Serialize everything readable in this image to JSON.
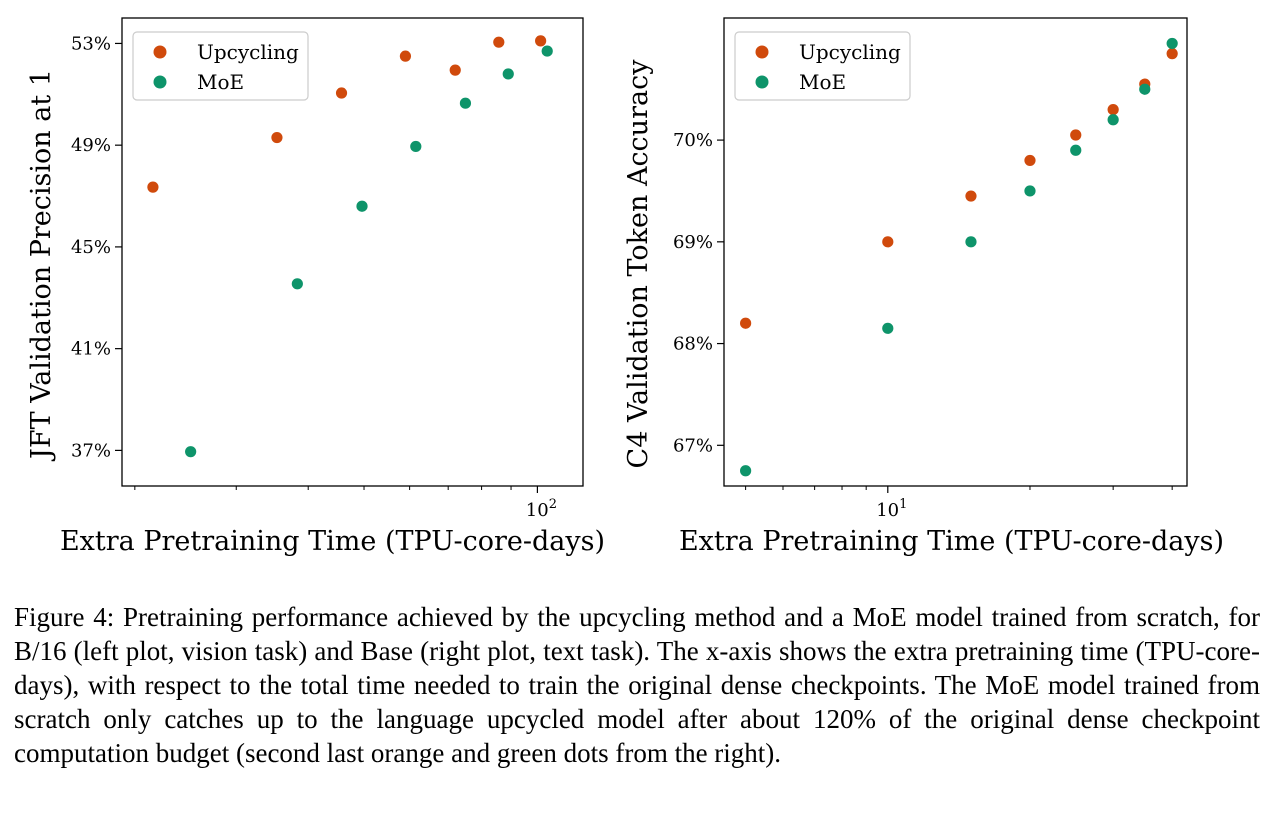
{
  "chart_data": [
    {
      "type": "scatter",
      "xlabel": "Extra Pretraining Time (TPU-core-days)",
      "ylabel": "JFT Validation Precision at 1",
      "xscale": "log",
      "xlim": [
        19,
        120
      ],
      "xticks": [
        {
          "value": 100,
          "label": "10",
          "exp": "2"
        }
      ],
      "ylim": [
        35.6,
        54.0
      ],
      "yticks": [
        {
          "value": 53,
          "label": "53%"
        },
        {
          "value": 49,
          "label": "49%"
        },
        {
          "value": 45,
          "label": "45%"
        },
        {
          "value": 41,
          "label": "41%"
        },
        {
          "value": 37,
          "label": "37%"
        }
      ],
      "grid": false,
      "legend_placement": "top-left",
      "series": [
        {
          "name": "Upcycling",
          "color": "#d04a0c",
          "x": [
            21.5,
            35.3,
            45.7,
            59.0,
            72.0,
            85.7,
            101.3
          ],
          "y": [
            47.35,
            49.3,
            51.05,
            52.5,
            51.95,
            53.05,
            53.1
          ]
        },
        {
          "name": "MoE",
          "color": "#0e946a",
          "x": [
            25.0,
            38.3,
            49.6,
            61.5,
            75.0,
            89.0,
            104.0
          ],
          "y": [
            36.95,
            43.55,
            46.6,
            48.95,
            50.65,
            51.8,
            52.7
          ]
        }
      ]
    },
    {
      "type": "scatter",
      "xlabel": "Extra Pretraining Time (TPU-core-days)",
      "ylabel": "C4 Validation Token Accuracy",
      "xscale": "log",
      "xlim": [
        4.5,
        43
      ],
      "xticks": [
        {
          "value": 10,
          "label": "10",
          "exp": "1"
        }
      ],
      "ylim": [
        66.6,
        71.2
      ],
      "yticks": [
        {
          "value": 70,
          "label": "70%"
        },
        {
          "value": 69,
          "label": "69%"
        },
        {
          "value": 68,
          "label": "68%"
        },
        {
          "value": 67,
          "label": "67%"
        }
      ],
      "grid": false,
      "legend_placement": "top-left",
      "series": [
        {
          "name": "Upcycling",
          "color": "#d04a0c",
          "x": [
            5.0,
            10.0,
            15.0,
            20.0,
            25.0,
            30.0,
            35.0,
            40.0
          ],
          "y": [
            68.2,
            69.0,
            69.45,
            69.8,
            70.05,
            70.3,
            70.55,
            70.85
          ]
        },
        {
          "name": "MoE",
          "color": "#0e946a",
          "x": [
            5.0,
            10.0,
            15.0,
            20.0,
            25.0,
            30.0,
            35.0,
            40.0
          ],
          "y": [
            66.75,
            68.15,
            69.0,
            69.5,
            69.9,
            70.2,
            70.5,
            70.95
          ]
        }
      ]
    }
  ],
  "caption": "Figure 4: Pretraining performance achieved by the upcycling method and a MoE model trained from scratch, for B/16 (left plot, vision task) and Base (right plot, text task). The x-axis shows the extra pretraining time (TPU-core-days), with respect to the total time needed to train the original dense checkpoints. The MoE model trained from scratch only catches up to the language upcycled model after about 120% of the original dense checkpoint computation budget (second last orange and green dots from the right)."
}
